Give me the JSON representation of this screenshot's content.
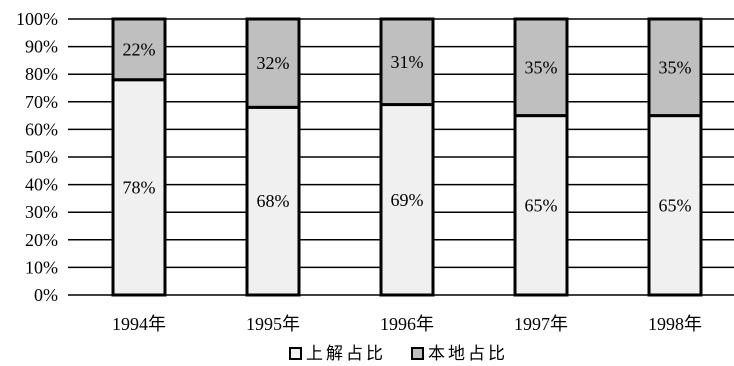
{
  "chart_data": {
    "type": "bar",
    "stacked": true,
    "percent": true,
    "categories": [
      "1994年",
      "1995年",
      "1996年",
      "1997年",
      "1998年"
    ],
    "series": [
      {
        "name": "上解占比",
        "values": [
          78,
          68,
          69,
          65,
          65
        ],
        "labels": [
          "78%",
          "68%",
          "69%",
          "65%",
          "65%"
        ],
        "color": "#f0f0f0"
      },
      {
        "name": "本地占比",
        "values": [
          22,
          32,
          31,
          35,
          35
        ],
        "labels": [
          "22%",
          "32%",
          "31%",
          "35%",
          "35%"
        ],
        "color": "#bfbfbf"
      }
    ],
    "yticks": [
      "0%",
      "10%",
      "20%",
      "30%",
      "40%",
      "50%",
      "60%",
      "70%",
      "80%",
      "90%",
      "100%"
    ],
    "ylim": [
      0,
      100
    ],
    "grid": true,
    "legend": "bottom"
  }
}
